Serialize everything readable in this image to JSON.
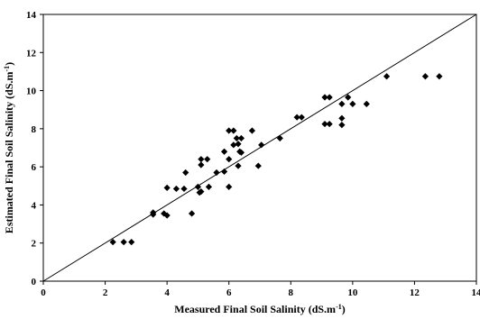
{
  "chart_data": {
    "type": "scatter",
    "title": "",
    "xlabel": "Measured Final Soil Salinity (dS.m",
    "xlabel_sup": "-1",
    "xlabel_end": ")",
    "ylabel": "Estimated Final Soil Salinity (dS.m",
    "ylabel_sup": "-1",
    "ylabel_end": ")",
    "xlim": [
      0,
      14
    ],
    "ylim": [
      0,
      14
    ],
    "x_ticks": [
      "0",
      "2",
      "4",
      "6",
      "8",
      "10",
      "12",
      "14"
    ],
    "y_ticks": [
      "0",
      "2",
      "4",
      "6",
      "8",
      "10",
      "12",
      "14"
    ],
    "grid": false,
    "legend": "none",
    "reference_line": {
      "label": "",
      "from": [
        0,
        0
      ],
      "to": [
        14,
        14
      ]
    },
    "marker": "diamond",
    "marker_color": "#000000",
    "points": [
      {
        "x": 2.25,
        "y": 2.05
      },
      {
        "x": 2.6,
        "y": 2.05
      },
      {
        "x": 2.85,
        "y": 2.05
      },
      {
        "x": 3.55,
        "y": 3.5
      },
      {
        "x": 3.55,
        "y": 3.6
      },
      {
        "x": 3.9,
        "y": 3.55
      },
      {
        "x": 4.0,
        "y": 3.45
      },
      {
        "x": 4.0,
        "y": 4.9
      },
      {
        "x": 4.3,
        "y": 4.85
      },
      {
        "x": 4.55,
        "y": 4.85
      },
      {
        "x": 4.6,
        "y": 5.7
      },
      {
        "x": 4.8,
        "y": 3.55
      },
      {
        "x": 5.0,
        "y": 4.95
      },
      {
        "x": 5.05,
        "y": 4.65
      },
      {
        "x": 5.1,
        "y": 4.7
      },
      {
        "x": 5.1,
        "y": 6.1
      },
      {
        "x": 5.1,
        "y": 6.4
      },
      {
        "x": 5.3,
        "y": 6.4
      },
      {
        "x": 5.35,
        "y": 4.95
      },
      {
        "x": 5.6,
        "y": 5.7
      },
      {
        "x": 5.85,
        "y": 5.75
      },
      {
        "x": 5.85,
        "y": 6.8
      },
      {
        "x": 6.0,
        "y": 4.95
      },
      {
        "x": 6.0,
        "y": 6.4
      },
      {
        "x": 6.0,
        "y": 7.9
      },
      {
        "x": 6.15,
        "y": 7.9
      },
      {
        "x": 6.15,
        "y": 7.15
      },
      {
        "x": 6.25,
        "y": 7.5
      },
      {
        "x": 6.3,
        "y": 7.2
      },
      {
        "x": 6.3,
        "y": 6.05
      },
      {
        "x": 6.35,
        "y": 6.8
      },
      {
        "x": 6.4,
        "y": 6.75
      },
      {
        "x": 6.4,
        "y": 7.5
      },
      {
        "x": 6.75,
        "y": 7.9
      },
      {
        "x": 6.95,
        "y": 6.05
      },
      {
        "x": 7.05,
        "y": 7.15
      },
      {
        "x": 7.65,
        "y": 7.5
      },
      {
        "x": 8.2,
        "y": 8.6
      },
      {
        "x": 8.35,
        "y": 8.6
      },
      {
        "x": 9.1,
        "y": 9.65
      },
      {
        "x": 9.1,
        "y": 8.25
      },
      {
        "x": 9.25,
        "y": 9.65
      },
      {
        "x": 9.25,
        "y": 8.25
      },
      {
        "x": 9.65,
        "y": 8.55
      },
      {
        "x": 9.65,
        "y": 8.2
      },
      {
        "x": 9.65,
        "y": 9.3
      },
      {
        "x": 9.85,
        "y": 9.65
      },
      {
        "x": 10.0,
        "y": 9.3
      },
      {
        "x": 10.45,
        "y": 9.3
      },
      {
        "x": 11.1,
        "y": 10.75
      },
      {
        "x": 12.35,
        "y": 10.75
      },
      {
        "x": 12.8,
        "y": 10.75
      }
    ]
  }
}
